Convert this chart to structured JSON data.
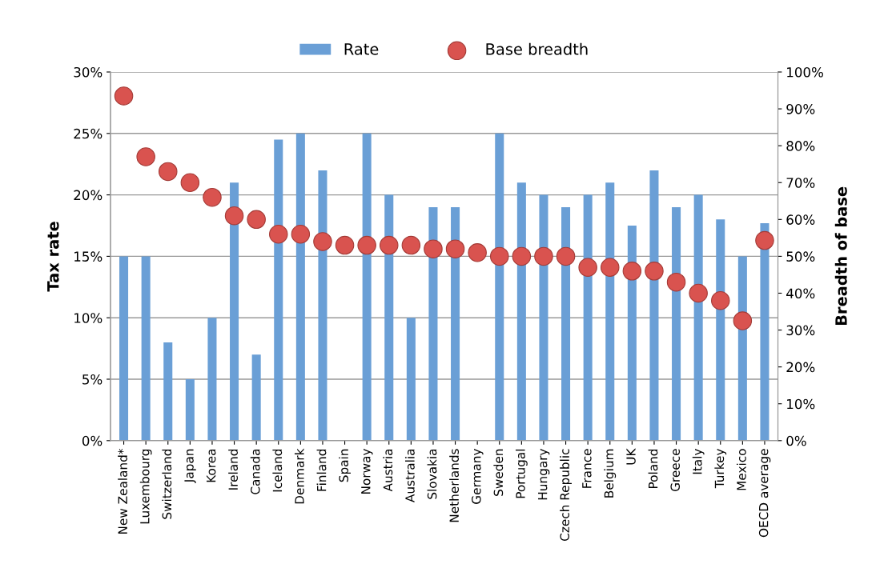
{
  "chart_data": {
    "type": "bar",
    "categories": [
      "New Zealand*",
      "Luxembourg",
      "Switzerland",
      "Japan",
      "Korea",
      "Ireland",
      "Canada",
      "Iceland",
      "Denmark",
      "Finland",
      "Spain",
      "Norway",
      "Austria",
      "Australia",
      "Slovakia",
      "Netherlands",
      "Germany",
      "Sweden",
      "Portugal",
      "Hungary",
      "Czech Republic",
      "France",
      "Belgium",
      "UK",
      "Poland",
      "Greece",
      "Italy",
      "Turkey",
      "Mexico",
      "OECD average"
    ],
    "series": [
      {
        "name": "Rate",
        "color": "#6a9fd6",
        "values": [
          15,
          15,
          8,
          5,
          10,
          21,
          7,
          24.5,
          25,
          22,
          null,
          25,
          20,
          10,
          19,
          19,
          null,
          25,
          21,
          20,
          19,
          20,
          21,
          17.5,
          22,
          19,
          20,
          18,
          15,
          17.7
        ]
      },
      {
        "name": "Base breadth",
        "type": "scatter",
        "axis": "y2",
        "color": "#d9534f",
        "values": [
          93.5,
          77,
          73,
          70,
          66,
          61,
          60,
          56,
          56,
          54,
          53,
          53,
          53,
          53,
          52,
          52,
          51,
          50,
          50,
          50,
          50,
          47,
          47,
          46,
          46,
          43,
          40,
          38,
          32.5,
          54.3
        ]
      }
    ],
    "ylabel": "Tax rate",
    "y2label": "Breadth of base",
    "ylim": [
      0,
      30
    ],
    "yticks": [
      {
        "value": 0,
        "label": "0%"
      },
      {
        "value": 5,
        "label": "5%"
      },
      {
        "value": 10,
        "label": "10%"
      },
      {
        "value": 15,
        "label": "15%"
      },
      {
        "value": 20,
        "label": "20%"
      },
      {
        "value": 25,
        "label": "25%"
      },
      {
        "value": 30,
        "label": "30%"
      }
    ],
    "y2lim": [
      0,
      100
    ],
    "y2ticks": [
      {
        "value": 0,
        "label": "0%"
      },
      {
        "value": 10,
        "label": "10%"
      },
      {
        "value": 20,
        "label": "20%"
      },
      {
        "value": 30,
        "label": "30%"
      },
      {
        "value": 40,
        "label": "40%"
      },
      {
        "value": 50,
        "label": "50%"
      },
      {
        "value": 60,
        "label": "60%"
      },
      {
        "value": 70,
        "label": "70%"
      },
      {
        "value": 80,
        "label": "80%"
      },
      {
        "value": 90,
        "label": "90%"
      },
      {
        "value": 100,
        "label": "100%"
      }
    ],
    "grid": "y",
    "legend": "top",
    "marker": "circle"
  }
}
